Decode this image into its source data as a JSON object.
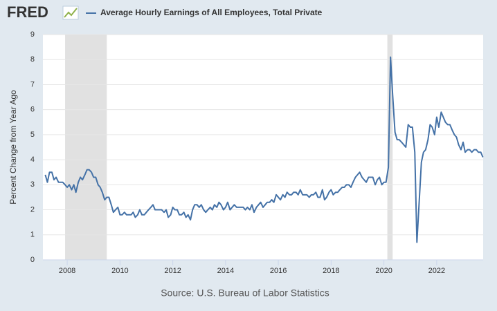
{
  "logo": "FRED",
  "chart_data": {
    "type": "line",
    "legend": "Average Hourly Earnings of All Employees, Total Private",
    "y_label": "Percent Change from Year Ago",
    "source": "Source: U.S. Bureau of Labor Statistics",
    "color": "#4572a7",
    "recession_color": "#e1e1e1",
    "recessions": [
      [
        2007.92,
        2009.5
      ],
      [
        2020.13,
        2020.33
      ]
    ],
    "xlim": [
      2007.08,
      2023.76
    ],
    "xticks": [
      2008,
      2010,
      2012,
      2014,
      2016,
      2018,
      2020,
      2022
    ],
    "ylim": [
      0,
      9
    ],
    "yticks": [
      0,
      1,
      2,
      3,
      4,
      5,
      6,
      7,
      8,
      9
    ],
    "grid": true,
    "x": [
      2007.17,
      2007.25,
      2007.33,
      2007.42,
      2007.5,
      2007.58,
      2007.67,
      2007.75,
      2007.83,
      2007.92,
      2008.0,
      2008.08,
      2008.17,
      2008.25,
      2008.33,
      2008.42,
      2008.5,
      2008.58,
      2008.67,
      2008.75,
      2008.83,
      2008.92,
      2009.0,
      2009.08,
      2009.17,
      2009.25,
      2009.33,
      2009.42,
      2009.5,
      2009.58,
      2009.67,
      2009.75,
      2009.83,
      2009.92,
      2010.0,
      2010.08,
      2010.17,
      2010.25,
      2010.33,
      2010.42,
      2010.5,
      2010.58,
      2010.67,
      2010.75,
      2010.83,
      2010.92,
      2011.0,
      2011.08,
      2011.17,
      2011.25,
      2011.33,
      2011.42,
      2011.5,
      2011.58,
      2011.67,
      2011.75,
      2011.83,
      2011.92,
      2012.0,
      2012.08,
      2012.17,
      2012.25,
      2012.33,
      2012.42,
      2012.5,
      2012.58,
      2012.67,
      2012.75,
      2012.83,
      2012.92,
      2013.0,
      2013.08,
      2013.17,
      2013.25,
      2013.33,
      2013.42,
      2013.5,
      2013.58,
      2013.67,
      2013.75,
      2013.83,
      2013.92,
      2014.0,
      2014.08,
      2014.17,
      2014.25,
      2014.33,
      2014.42,
      2014.5,
      2014.58,
      2014.67,
      2014.75,
      2014.83,
      2014.92,
      2015.0,
      2015.08,
      2015.17,
      2015.25,
      2015.33,
      2015.42,
      2015.5,
      2015.58,
      2015.67,
      2015.75,
      2015.83,
      2015.92,
      2016.0,
      2016.08,
      2016.17,
      2016.25,
      2016.33,
      2016.42,
      2016.5,
      2016.58,
      2016.67,
      2016.75,
      2016.83,
      2016.92,
      2017.0,
      2017.08,
      2017.17,
      2017.25,
      2017.33,
      2017.42,
      2017.5,
      2017.58,
      2017.67,
      2017.75,
      2017.83,
      2017.92,
      2018.0,
      2018.08,
      2018.17,
      2018.25,
      2018.33,
      2018.42,
      2018.5,
      2018.58,
      2018.67,
      2018.75,
      2018.83,
      2018.92,
      2019.0,
      2019.08,
      2019.17,
      2019.25,
      2019.33,
      2019.42,
      2019.5,
      2019.58,
      2019.67,
      2019.75,
      2019.83,
      2019.92,
      2020.0,
      2020.08,
      2020.17,
      2020.25,
      2020.33,
      2020.42,
      2020.5,
      2020.58,
      2020.67,
      2020.75,
      2020.83,
      2020.92,
      2021.0,
      2021.08,
      2021.17,
      2021.25,
      2021.33,
      2021.42,
      2021.5,
      2021.58,
      2021.67,
      2021.75,
      2021.83,
      2021.92,
      2022.0,
      2022.08,
      2022.17,
      2022.25,
      2022.33,
      2022.42,
      2022.5,
      2022.58,
      2022.67,
      2022.75,
      2022.83,
      2022.92,
      2023.0,
      2023.08,
      2023.17,
      2023.25,
      2023.33,
      2023.42,
      2023.5,
      2023.58,
      2023.67,
      2023.75
    ],
    "values": [
      3.4,
      3.1,
      3.5,
      3.5,
      3.2,
      3.3,
      3.1,
      3.1,
      3.1,
      3.0,
      2.9,
      3.0,
      2.8,
      3.0,
      2.7,
      3.1,
      3.3,
      3.2,
      3.4,
      3.6,
      3.6,
      3.5,
      3.3,
      3.3,
      3.0,
      2.9,
      2.7,
      2.4,
      2.5,
      2.5,
      2.2,
      1.9,
      2.0,
      2.1,
      1.8,
      1.8,
      1.9,
      1.8,
      1.8,
      1.8,
      1.9,
      1.7,
      1.8,
      2.0,
      1.8,
      1.8,
      1.9,
      2.0,
      2.1,
      2.2,
      2.0,
      2.0,
      2.0,
      2.0,
      1.9,
      2.0,
      1.7,
      1.8,
      2.1,
      2.0,
      2.0,
      1.8,
      1.8,
      1.9,
      1.7,
      1.8,
      1.6,
      2.0,
      2.2,
      2.2,
      2.1,
      2.2,
      2.0,
      1.9,
      2.0,
      2.1,
      2.0,
      2.2,
      2.1,
      2.3,
      2.2,
      2.0,
      2.1,
      2.3,
      2.0,
      2.1,
      2.2,
      2.1,
      2.1,
      2.1,
      2.1,
      2.0,
      2.1,
      2.0,
      2.2,
      1.9,
      2.1,
      2.2,
      2.3,
      2.1,
      2.2,
      2.3,
      2.3,
      2.4,
      2.3,
      2.6,
      2.5,
      2.4,
      2.6,
      2.5,
      2.7,
      2.6,
      2.6,
      2.7,
      2.7,
      2.6,
      2.8,
      2.6,
      2.6,
      2.6,
      2.5,
      2.6,
      2.6,
      2.7,
      2.5,
      2.5,
      2.8,
      2.4,
      2.5,
      2.7,
      2.8,
      2.6,
      2.7,
      2.7,
      2.8,
      2.9,
      2.9,
      3.0,
      3.0,
      2.9,
      3.1,
      3.3,
      3.4,
      3.5,
      3.3,
      3.2,
      3.1,
      3.3,
      3.3,
      3.3,
      3.0,
      3.2,
      3.3,
      3.0,
      3.1,
      3.1,
      3.7,
      8.1,
      6.6,
      5.1,
      4.8,
      4.8,
      4.7,
      4.6,
      4.5,
      5.4,
      5.3,
      5.3,
      4.3,
      0.7,
      2.2,
      3.9,
      4.3,
      4.4,
      4.8,
      5.4,
      5.3,
      5.0,
      5.7,
      5.3,
      5.9,
      5.7,
      5.5,
      5.4,
      5.4,
      5.2,
      5.0,
      4.9,
      4.6,
      4.4,
      4.7,
      4.3,
      4.4,
      4.4,
      4.3,
      4.4,
      4.4,
      4.3,
      4.3,
      4.1
    ]
  }
}
